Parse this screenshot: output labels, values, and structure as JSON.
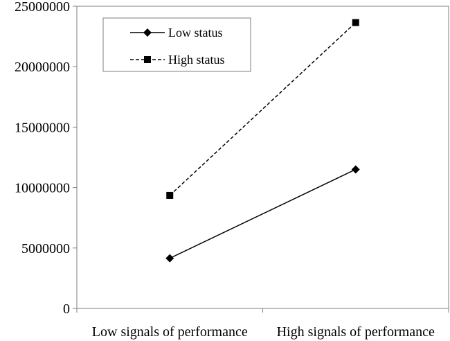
{
  "chart_data": {
    "type": "line",
    "categories": [
      "Low signals of performance",
      "High signals of performance"
    ],
    "series": [
      {
        "name": "Low status",
        "values": [
          4150000,
          11500000
        ],
        "line_style": "solid",
        "marker": "diamond",
        "color": "#000000"
      },
      {
        "name": "High status",
        "values": [
          9350000,
          23650000
        ],
        "line_style": "dashed",
        "marker": "square",
        "color": "#000000"
      }
    ],
    "ylim": [
      0,
      25000000
    ],
    "yticks": [
      0,
      5000000,
      10000000,
      15000000,
      20000000,
      25000000
    ],
    "ytick_labels": [
      "0",
      "5000000",
      "10000000",
      "15000000",
      "20000000",
      "25000000"
    ],
    "grid": false,
    "legend_position": "top-left"
  }
}
